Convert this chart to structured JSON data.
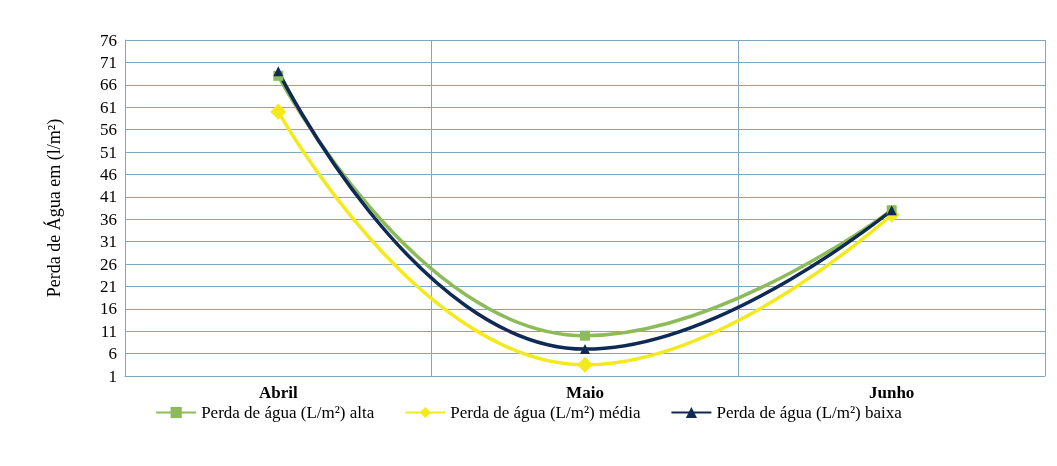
{
  "chart_data": {
    "type": "line",
    "ylabel": "Perda de Água em (l/m²)",
    "categories": [
      "Abril",
      "Maio",
      "Junho"
    ],
    "series": [
      {
        "name": "Perda de água (L/m²) alta",
        "color": "#8dbb5a",
        "marker": "square",
        "values": [
          68,
          10,
          38
        ]
      },
      {
        "name": "Perda de água (L/m²) média",
        "color": "#f2ea1c",
        "marker": "diamond",
        "values": [
          60,
          3.5,
          37
        ]
      },
      {
        "name": "Perda de água (L/m²) baixa",
        "color": "#0f2a55",
        "marker": "triangle",
        "values": [
          69,
          7,
          38
        ]
      }
    ],
    "ylim": [
      1,
      76
    ],
    "yticks": [
      1,
      6,
      11,
      16,
      21,
      26,
      31,
      36,
      41,
      46,
      51,
      56,
      61,
      66,
      71,
      76
    ],
    "grid": true,
    "legend": "bottom"
  }
}
